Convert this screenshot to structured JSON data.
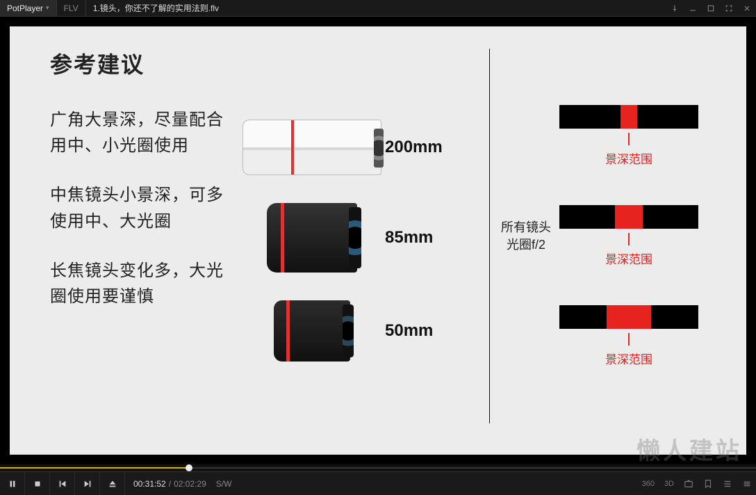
{
  "app": {
    "name": "PotPlayer",
    "format_badge": "FLV",
    "file_title": "1.镜头，你还不了解的实用法则.flv"
  },
  "window_controls": {
    "pin": "pin-icon",
    "minimize": "minimize-icon",
    "maximize": "maximize-icon",
    "fullscreen": "fullscreen-icon",
    "close": "close-icon"
  },
  "slide": {
    "heading": "参考建议",
    "paragraphs": [
      "广角大景深，尽量配合用中、小光圈使用",
      "中焦镜头小景深，可多使用中、大光圈",
      "长焦镜头变化多，大光圈使用要谨慎"
    ],
    "lenses": [
      {
        "label": "200mm",
        "figure": "lens200"
      },
      {
        "label": "85mm",
        "figure": "lens85"
      },
      {
        "label": "50mm",
        "figure": "lens50"
      }
    ],
    "right": {
      "side_text_line1": "所有镜头",
      "side_text_line2": "光圈f/2",
      "bars": [
        {
          "red_left_pct": 44,
          "red_width_pct": 12,
          "label": "景深范围"
        },
        {
          "red_left_pct": 40,
          "red_width_pct": 20,
          "label": "景深范围"
        },
        {
          "red_left_pct": 34,
          "red_width_pct": 32,
          "label": "景深范围"
        }
      ],
      "accent_red": "#e6231f",
      "bar_bg": "#000000"
    },
    "frame_bg": "#ececec"
  },
  "playback": {
    "progress_pct": 25,
    "progress_color": "#d3b10e",
    "current_time": "00:31:52",
    "duration": "02:02:29",
    "render_mode": "S/W"
  },
  "right_controls": {
    "r360": "360",
    "r3d": "3D"
  },
  "watermark": "懒人建站"
}
